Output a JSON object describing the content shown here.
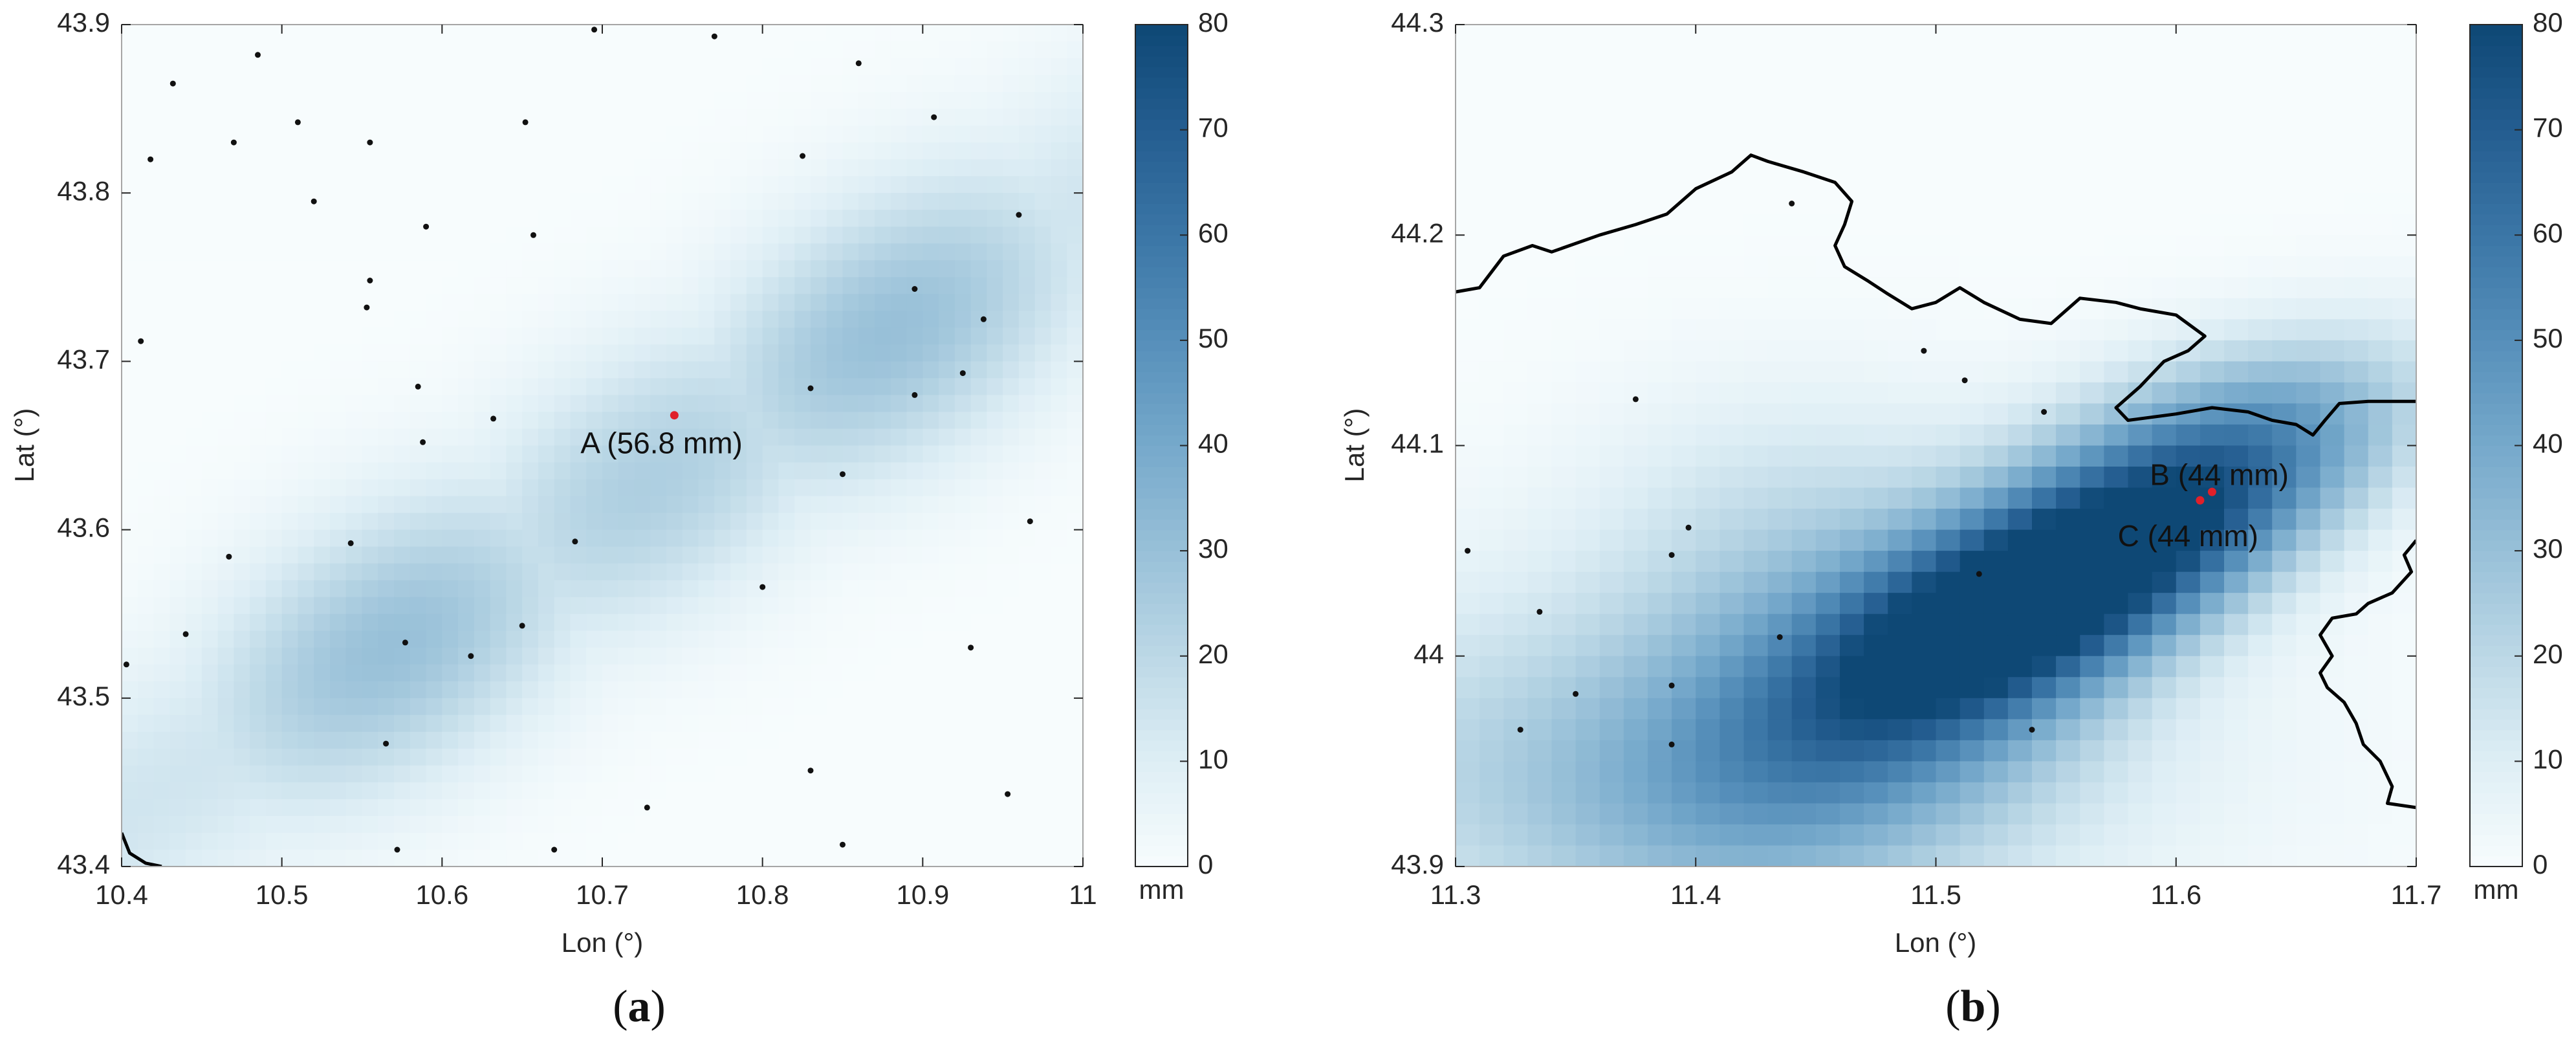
{
  "colors": {
    "colormap": [
      "#f7fcfd",
      "#deeef5",
      "#bcd8e6",
      "#98c0d8",
      "#76a9cb",
      "#568fba",
      "#3b76a6",
      "#245d90",
      "#0e4875"
    ],
    "station": "#111111",
    "highlight": "#e0202a",
    "coast": "#000000",
    "frame": "#a6a6a6"
  },
  "chart_data": [
    {
      "type": "heatmap",
      "panel_label": {
        "open": "(",
        "letter": "a",
        "close": ")"
      },
      "xlabel": "Lon (°)",
      "ylabel": "Lat (°)",
      "xlim": [
        10.4,
        11.0
      ],
      "ylim": [
        43.4,
        43.9
      ],
      "xticks": [
        10.4,
        10.5,
        10.6,
        10.7,
        10.8,
        10.9,
        11.0
      ],
      "xtick_labels": [
        "10.4",
        "10.5",
        "10.6",
        "10.7",
        "10.8",
        "10.9",
        "11"
      ],
      "yticks": [
        43.4,
        43.5,
        43.6,
        43.7,
        43.8,
        43.9
      ],
      "ytick_labels": [
        "43.4",
        "43.5",
        "43.6",
        "43.7",
        "43.8",
        "43.9"
      ],
      "colorbar": {
        "min": 0,
        "max": 80,
        "ticks": [
          0,
          10,
          20,
          30,
          40,
          50,
          60,
          70,
          80
        ],
        "tick_labels": [
          "0",
          "10",
          "20",
          "30",
          "40",
          "50",
          "60",
          "70",
          "80"
        ],
        "unit": "mm"
      },
      "grid": {
        "nx": 60,
        "ny": 50
      },
      "field": {
        "kind": "band",
        "p0": [
          10.4,
          43.43
        ],
        "p1": [
          11.0,
          43.79
        ],
        "width": 0.055,
        "base": 0,
        "peaks": [
          [
            0.28,
            30
          ],
          [
            0.55,
            24
          ],
          [
            0.8,
            30
          ]
        ]
      },
      "stations": [
        [
          10.485,
          43.882
        ],
        [
          10.432,
          43.865
        ],
        [
          10.418,
          43.82
        ],
        [
          10.47,
          43.83
        ],
        [
          10.51,
          43.842
        ],
        [
          10.52,
          43.795
        ],
        [
          10.555,
          43.83
        ],
        [
          10.59,
          43.78
        ],
        [
          10.652,
          43.842
        ],
        [
          10.657,
          43.775
        ],
        [
          10.695,
          43.897
        ],
        [
          10.77,
          43.893
        ],
        [
          10.86,
          43.877
        ],
        [
          10.825,
          43.822
        ],
        [
          10.907,
          43.845
        ],
        [
          10.96,
          43.787
        ],
        [
          10.555,
          43.748
        ],
        [
          10.553,
          43.732
        ],
        [
          10.412,
          43.712
        ],
        [
          10.585,
          43.685
        ],
        [
          10.588,
          43.652
        ],
        [
          10.632,
          43.666
        ],
        [
          10.83,
          43.684
        ],
        [
          10.895,
          43.743
        ],
        [
          10.938,
          43.725
        ],
        [
          10.895,
          43.68
        ],
        [
          10.925,
          43.693
        ],
        [
          10.85,
          43.633
        ],
        [
          10.543,
          43.592
        ],
        [
          10.467,
          43.584
        ],
        [
          10.683,
          43.593
        ],
        [
          10.8,
          43.566
        ],
        [
          10.967,
          43.605
        ],
        [
          10.44,
          43.538
        ],
        [
          10.577,
          43.533
        ],
        [
          10.618,
          43.525
        ],
        [
          10.65,
          43.543
        ],
        [
          10.403,
          43.52
        ],
        [
          10.93,
          43.53
        ],
        [
          10.565,
          43.473
        ],
        [
          10.83,
          43.457
        ],
        [
          10.728,
          43.435
        ],
        [
          10.953,
          43.443
        ],
        [
          10.572,
          43.41
        ],
        [
          10.67,
          43.41
        ],
        [
          10.85,
          43.413
        ]
      ],
      "highlights": [
        {
          "lon": 10.745,
          "lat": 43.668,
          "label": "A (56.8 mm)",
          "label_at": [
            10.737,
            43.65
          ]
        }
      ],
      "coastline": [
        [
          10.4,
          43.42
        ],
        [
          10.405,
          43.408
        ],
        [
          10.415,
          43.402
        ],
        [
          10.425,
          43.4
        ]
      ]
    },
    {
      "type": "heatmap",
      "panel_label": {
        "open": "(",
        "letter": "b",
        "close": ")"
      },
      "xlabel": "Lon (°)",
      "ylabel": "Lat (°)",
      "xlim": [
        11.3,
        11.7
      ],
      "ylim": [
        43.9,
        44.3
      ],
      "xticks": [
        11.3,
        11.4,
        11.5,
        11.6,
        11.7
      ],
      "xtick_labels": [
        "11.3",
        "11.4",
        "11.5",
        "11.6",
        "11.7"
      ],
      "yticks": [
        43.9,
        44.0,
        44.1,
        44.2,
        44.3
      ],
      "ytick_labels": [
        "43.9",
        "44",
        "44.1",
        "44.2",
        "44.3"
      ],
      "colorbar": {
        "min": 0,
        "max": 80,
        "ticks": [
          0,
          10,
          20,
          30,
          40,
          50,
          60,
          70,
          80
        ],
        "tick_labels": [
          "0",
          "10",
          "20",
          "30",
          "40",
          "50",
          "60",
          "70",
          "80"
        ],
        "unit": "mm"
      },
      "grid": {
        "nx": 40,
        "ny": 40
      },
      "field": {
        "kind": "blobs",
        "blobs": [
          [
            11.585,
            44.055,
            0.07,
            0.03,
            65,
            -0.55
          ],
          [
            11.525,
            44.02,
            0.06,
            0.03,
            45,
            -0.55
          ],
          [
            11.46,
            43.965,
            0.08,
            0.05,
            32,
            -0.55
          ],
          [
            11.38,
            43.95,
            0.14,
            0.06,
            22,
            0.0
          ],
          [
            11.44,
            44.06,
            0.06,
            0.05,
            14,
            0.0
          ],
          [
            11.62,
            44.11,
            0.06,
            0.03,
            22,
            -0.3
          ]
        ]
      },
      "stations": [
        [
          11.44,
          44.215
        ],
        [
          11.495,
          44.145
        ],
        [
          11.512,
          44.131
        ],
        [
          11.375,
          44.122
        ],
        [
          11.545,
          44.116
        ],
        [
          11.305,
          44.05
        ],
        [
          11.397,
          44.061
        ],
        [
          11.39,
          44.048
        ],
        [
          11.518,
          44.039
        ],
        [
          11.335,
          44.021
        ],
        [
          11.435,
          44.009
        ],
        [
          11.39,
          43.986
        ],
        [
          11.35,
          43.982
        ],
        [
          11.327,
          43.965
        ],
        [
          11.39,
          43.958
        ],
        [
          11.54,
          43.965
        ]
      ],
      "highlights": [
        {
          "lon": 11.615,
          "lat": 44.078,
          "label": "B (44 mm)",
          "label_at": [
            11.618,
            44.085
          ]
        },
        {
          "lon": 11.61,
          "lat": 44.074,
          "label": "C (44 mm)",
          "label_at": [
            11.605,
            44.056
          ]
        }
      ],
      "coastline": [
        [
          11.3,
          44.173
        ],
        [
          11.31,
          44.175
        ],
        [
          11.32,
          44.19
        ],
        [
          11.332,
          44.195
        ],
        [
          11.34,
          44.192
        ],
        [
          11.36,
          44.2
        ],
        [
          11.375,
          44.205
        ],
        [
          11.388,
          44.21
        ],
        [
          11.4,
          44.222
        ],
        [
          11.415,
          44.23
        ],
        [
          11.423,
          44.238
        ],
        [
          11.43,
          44.235
        ],
        [
          11.445,
          44.23
        ],
        [
          11.458,
          44.225
        ],
        [
          11.465,
          44.216
        ],
        [
          11.462,
          44.205
        ],
        [
          11.458,
          44.195
        ],
        [
          11.462,
          44.185
        ],
        [
          11.472,
          44.178
        ],
        [
          11.48,
          44.172
        ],
        [
          11.49,
          44.165
        ],
        [
          11.5,
          44.168
        ],
        [
          11.51,
          44.175
        ],
        [
          11.52,
          44.168
        ],
        [
          11.535,
          44.16
        ],
        [
          11.548,
          44.158
        ],
        [
          11.56,
          44.17
        ],
        [
          11.575,
          44.168
        ],
        [
          11.585,
          44.165
        ],
        [
          11.6,
          44.162
        ],
        [
          11.612,
          44.152
        ],
        [
          11.605,
          44.145
        ],
        [
          11.595,
          44.14
        ],
        [
          11.585,
          44.128
        ],
        [
          11.575,
          44.118
        ],
        [
          11.58,
          44.112
        ],
        [
          11.6,
          44.115
        ],
        [
          11.615,
          44.118
        ],
        [
          11.63,
          44.116
        ],
        [
          11.64,
          44.112
        ],
        [
          11.65,
          44.11
        ],
        [
          11.657,
          44.105
        ],
        [
          11.662,
          44.112
        ],
        [
          11.668,
          44.12
        ],
        [
          11.68,
          44.121
        ],
        [
          11.7,
          44.121
        ]
      ],
      "coastline2": [
        [
          11.7,
          44.055
        ],
        [
          11.695,
          44.048
        ],
        [
          11.698,
          44.04
        ],
        [
          11.69,
          44.03
        ],
        [
          11.68,
          44.025
        ],
        [
          11.675,
          44.02
        ],
        [
          11.665,
          44.018
        ],
        [
          11.66,
          44.01
        ],
        [
          11.665,
          44.0
        ],
        [
          11.66,
          43.992
        ],
        [
          11.663,
          43.985
        ],
        [
          11.67,
          43.978
        ],
        [
          11.675,
          43.968
        ],
        [
          11.678,
          43.958
        ],
        [
          11.685,
          43.95
        ],
        [
          11.69,
          43.938
        ],
        [
          11.688,
          43.93
        ],
        [
          11.7,
          43.928
        ]
      ]
    }
  ]
}
